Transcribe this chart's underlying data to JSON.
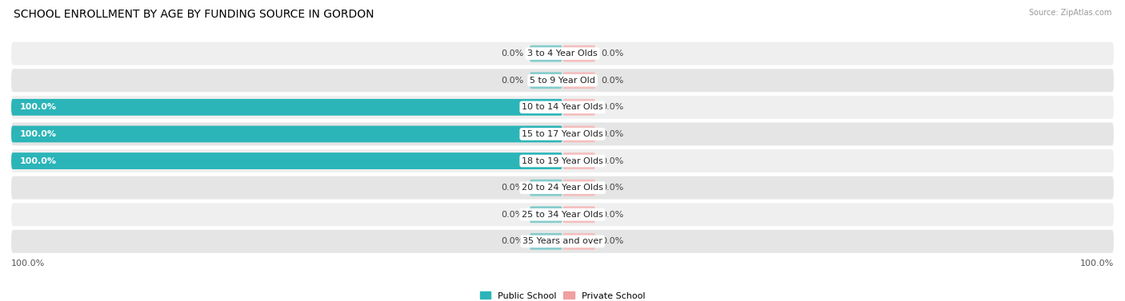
{
  "title": "SCHOOL ENROLLMENT BY AGE BY FUNDING SOURCE IN GORDON",
  "source": "Source: ZipAtlas.com",
  "categories": [
    "3 to 4 Year Olds",
    "5 to 9 Year Old",
    "10 to 14 Year Olds",
    "15 to 17 Year Olds",
    "18 to 19 Year Olds",
    "20 to 24 Year Olds",
    "25 to 34 Year Olds",
    "35 Years and over"
  ],
  "public_values": [
    0.0,
    0.0,
    100.0,
    100.0,
    100.0,
    0.0,
    0.0,
    0.0
  ],
  "private_values": [
    0.0,
    0.0,
    0.0,
    0.0,
    0.0,
    0.0,
    0.0,
    0.0
  ],
  "public_color": "#2BB5B8",
  "private_color": "#F0A0A0",
  "public_color_zero": "#85CCCC",
  "private_color_zero": "#F5BEBE",
  "row_bg_even": "#EFEFEF",
  "row_bg_odd": "#E5E5E5",
  "axis_label_left": "100.0%",
  "axis_label_right": "100.0%",
  "legend_public": "Public School",
  "legend_private": "Private School",
  "title_fontsize": 10,
  "label_fontsize": 8,
  "cat_fontsize": 8,
  "val_fontsize": 8,
  "max_value": 100.0,
  "zero_stub": 6.0
}
